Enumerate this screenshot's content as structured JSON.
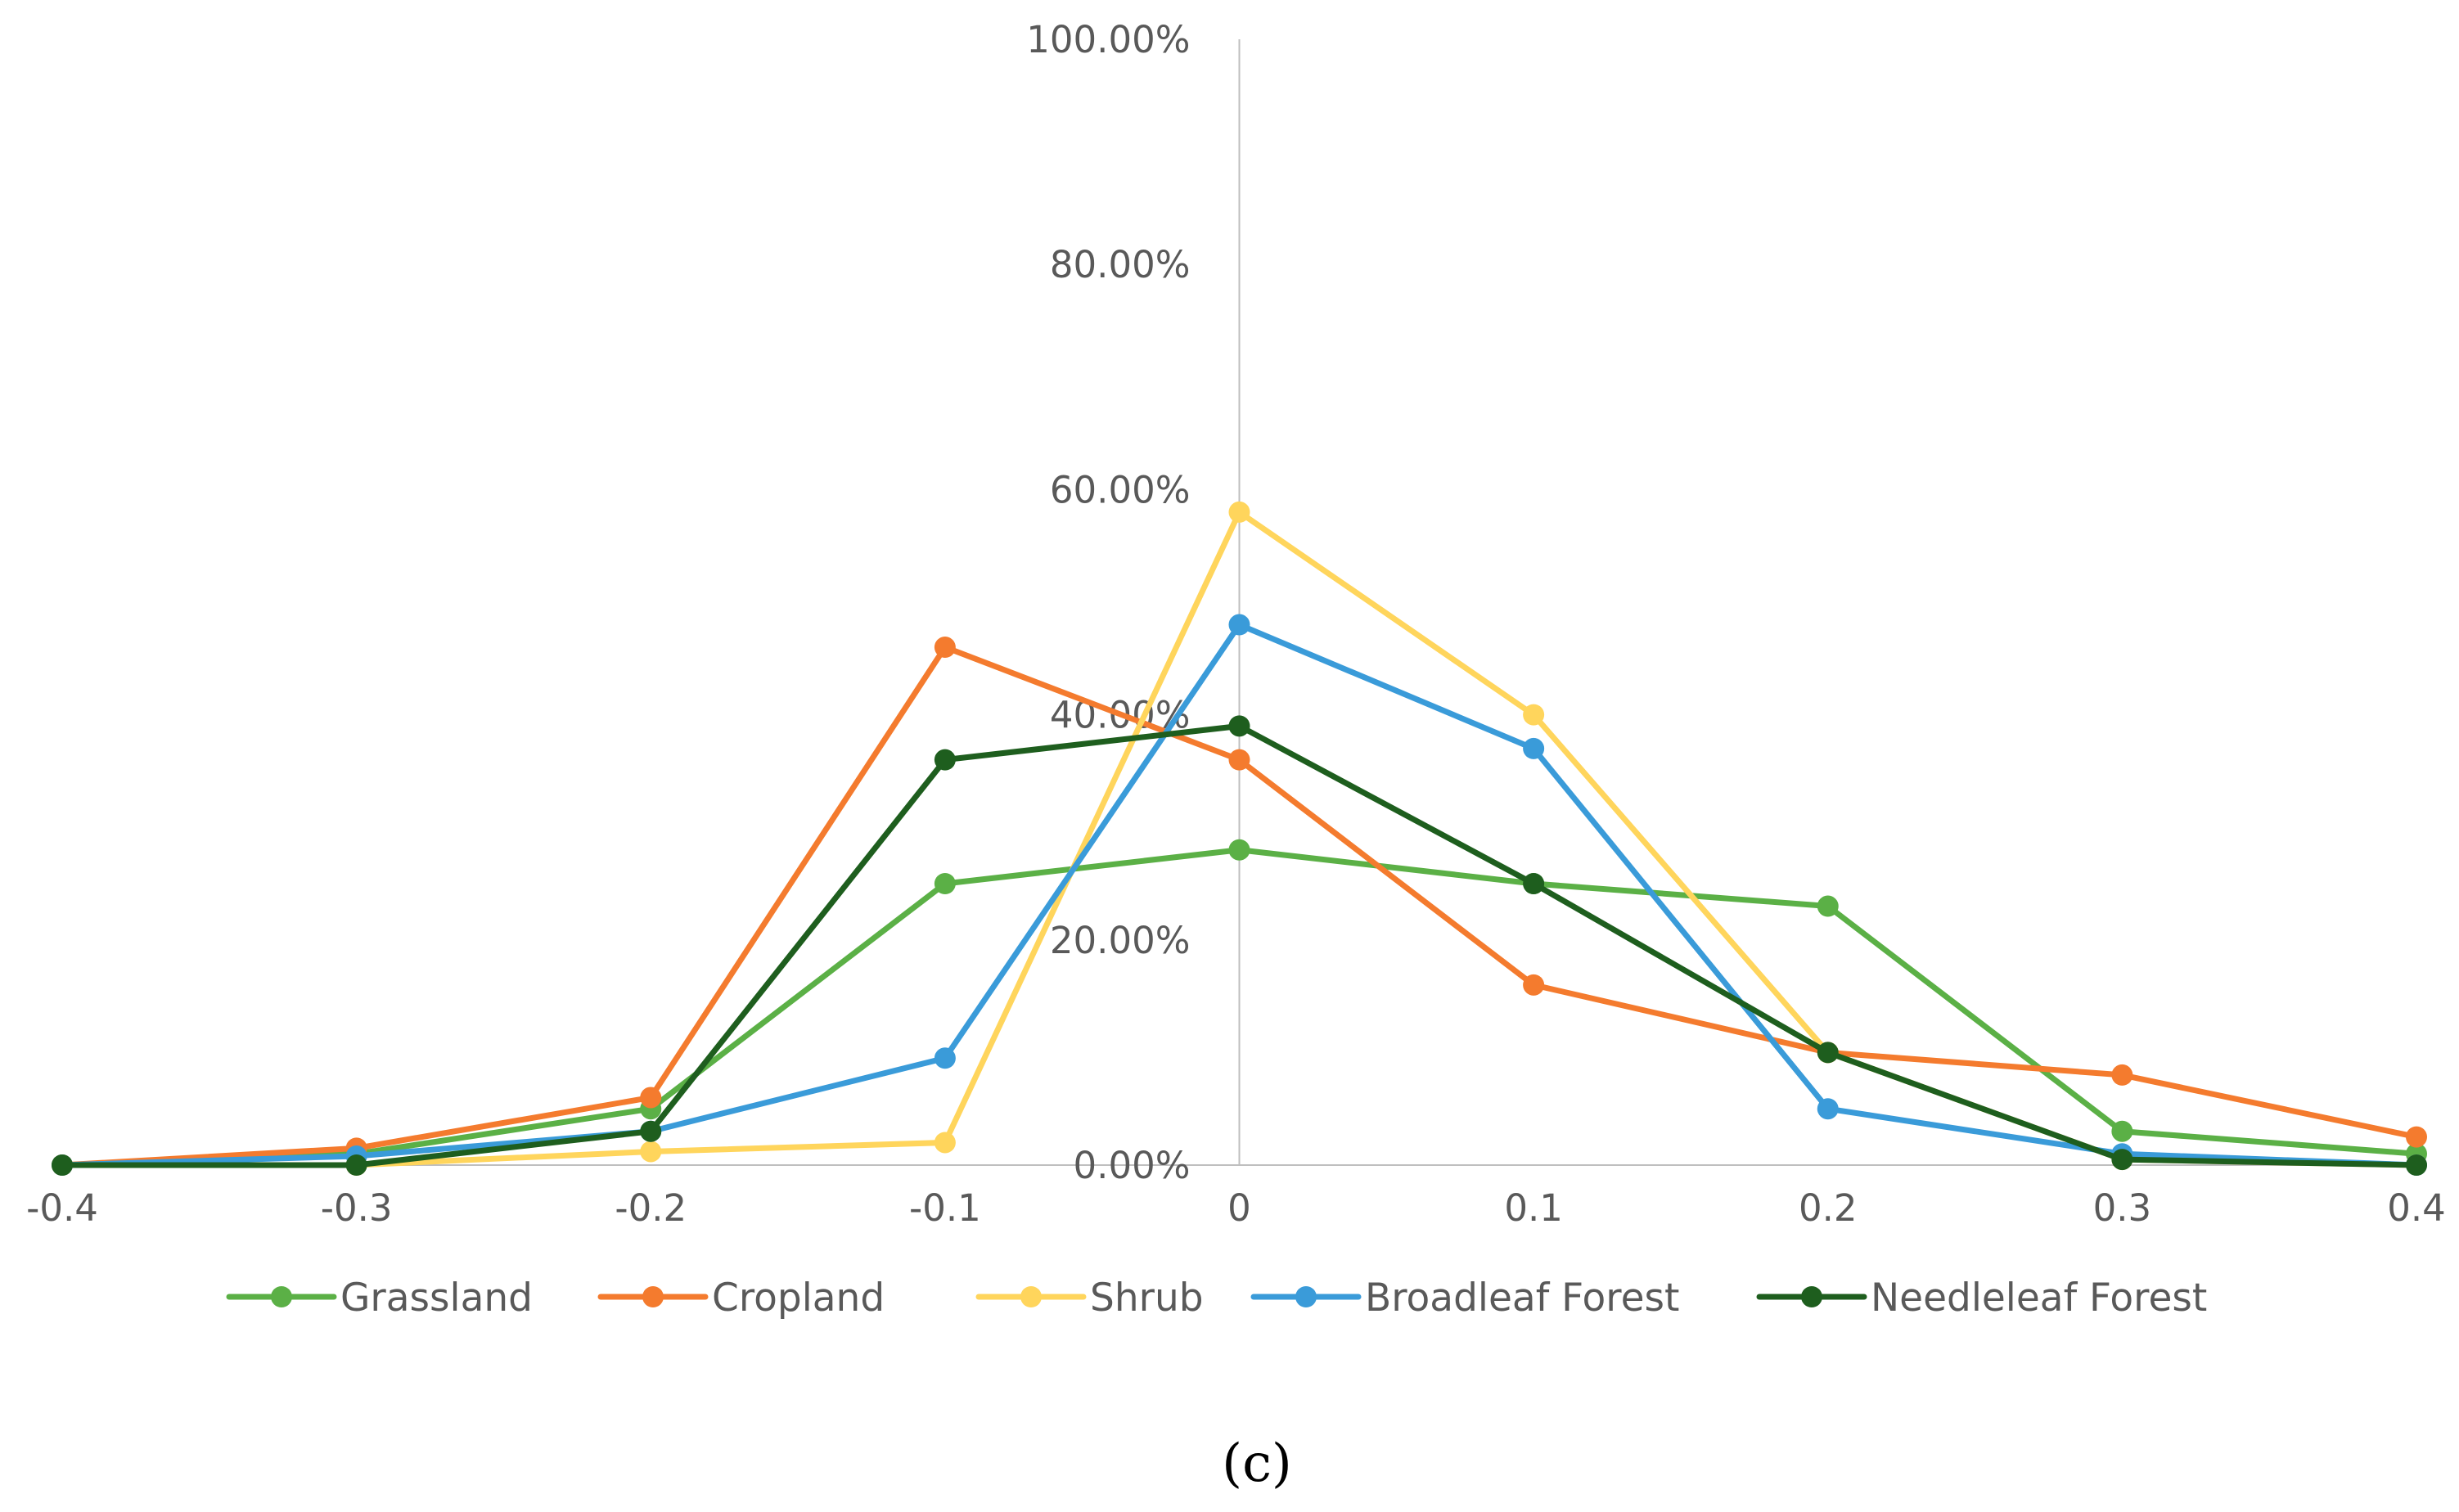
{
  "chart_data": {
    "type": "line",
    "title": "",
    "xlabel": "",
    "ylabel": "",
    "x": [
      -0.4,
      -0.3,
      -0.2,
      -0.1,
      0,
      0.1,
      0.2,
      0.3,
      0.4
    ],
    "x_tick_labels": [
      "-0.4",
      "-0.3",
      "-0.2",
      "-0.1",
      "0",
      "0.1",
      "0.2",
      "0.3",
      "0.4"
    ],
    "ylim": [
      0,
      100
    ],
    "y_ticks": [
      0,
      20,
      40,
      60,
      80,
      100
    ],
    "y_tick_labels": [
      "0.00%",
      "20.00%",
      "40.00%",
      "60.00%",
      "80.00%",
      "100.00%"
    ],
    "grid": false,
    "y_axis_crosses_x_at": 0,
    "legend_position": "bottom",
    "series": [
      {
        "name": "Grassland",
        "color": "#5BB046",
        "values": [
          0,
          1,
          5,
          25,
          28,
          25,
          23,
          3,
          1
        ]
      },
      {
        "name": "Cropland",
        "color": "#F47B2E",
        "values": [
          0,
          1.5,
          6,
          46,
          36,
          16,
          10,
          8,
          2.5
        ]
      },
      {
        "name": "Shrub",
        "color": "#FFD55C",
        "values": [
          0,
          0,
          1.2,
          2,
          58,
          40,
          10,
          0.5,
          0
        ]
      },
      {
        "name": "Broadleaf Forest",
        "color": "#3A9BD9",
        "values": [
          0,
          0.8,
          3,
          9.5,
          48,
          37,
          5,
          1,
          0
        ]
      },
      {
        "name": "Needleleaf Forest",
        "color": "#1E5E1E",
        "values": [
          0,
          0,
          3,
          36,
          39,
          25,
          10,
          0.5,
          0
        ]
      }
    ],
    "panel_label": "(c)"
  }
}
